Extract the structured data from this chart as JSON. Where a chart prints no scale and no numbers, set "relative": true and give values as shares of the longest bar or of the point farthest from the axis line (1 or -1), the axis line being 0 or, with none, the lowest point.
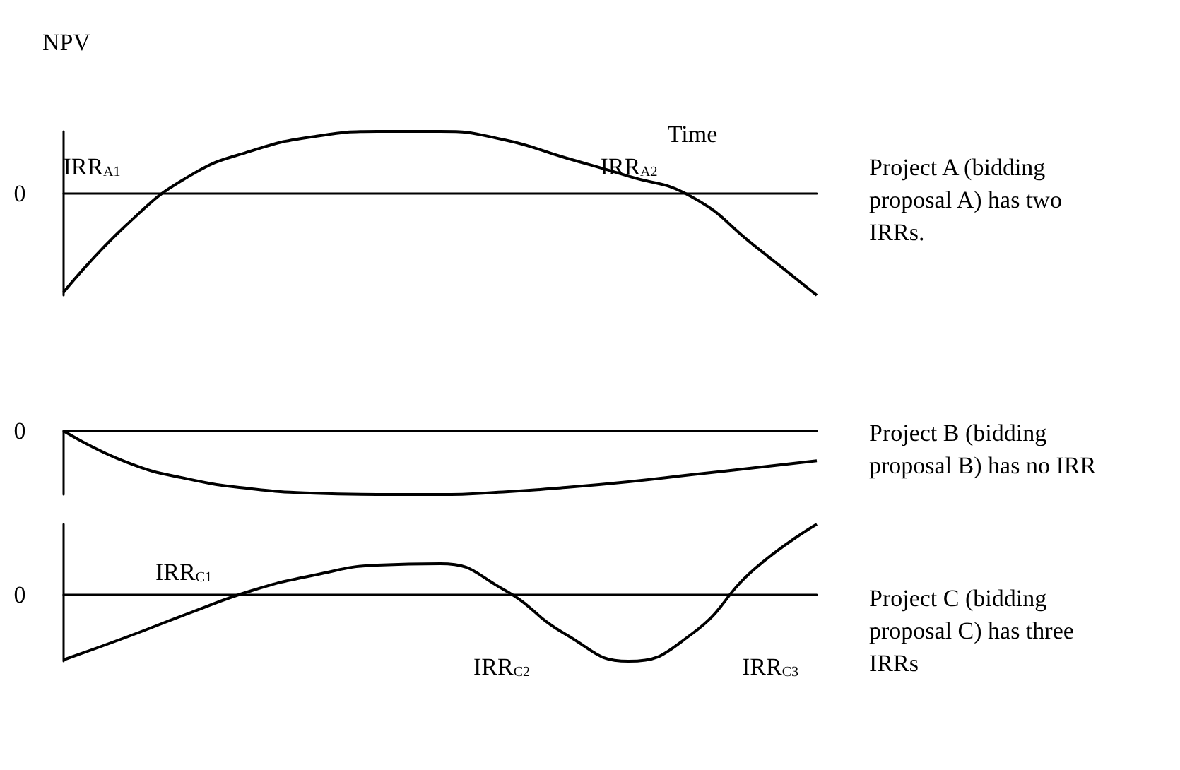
{
  "chart_data": [
    {
      "type": "line",
      "relative": true,
      "ylabel": "NPV",
      "xlabel": "Time",
      "color": "#000000",
      "marker": "none",
      "grid": false,
      "categories": [
        null,
        null,
        null,
        null,
        null,
        null,
        null,
        null,
        null,
        null,
        null,
        null,
        null
      ],
      "values": [
        -0.97,
        -0.31,
        0.17,
        0.42,
        0.56,
        0.61,
        0.61,
        0.53,
        0.35,
        0.17,
        -0.03,
        -0.51,
        -1
      ],
      "annotations": [
        "IRR$_{A1}$",
        "IRR$_{A2}$",
        "0",
        "Project A (bidding proposal A) has two IRRs."
      ]
    },
    {
      "type": "line",
      "relative": true,
      "color": "#000000",
      "marker": "none",
      "grid": false,
      "categories": [
        null,
        null,
        null,
        null,
        null,
        null,
        null,
        null,
        null,
        null,
        null,
        null,
        null
      ],
      "values": [
        0.0,
        -0.49,
        -0.76,
        -0.91,
        -0.98,
        -1,
        -1,
        -0.96,
        -0.89,
        -0.8,
        -0.69,
        -0.58,
        -0.47
      ],
      "annotations": [
        "0",
        "Project B (bidding proposal B) has no IRR"
      ]
    },
    {
      "type": "line",
      "relative": true,
      "color": "#000000",
      "marker": "none",
      "grid": false,
      "categories": [
        null,
        null,
        null,
        null,
        null,
        null,
        null,
        null,
        null,
        null,
        null,
        null,
        null
      ],
      "values": [
        -0.92,
        -0.6,
        -0.26,
        0.06,
        0.28,
        0.42,
        0.44,
        0.08,
        -0.56,
        -0.94,
        -0.56,
        0.36,
        1
      ],
      "annotations": [
        "IRR$_{C1}$",
        "IRR$_{C2}$",
        "IRR$_{C3}$",
        "0",
        "Project C (bidding proposal C) has three IRRs"
      ]
    }
  ]
}
